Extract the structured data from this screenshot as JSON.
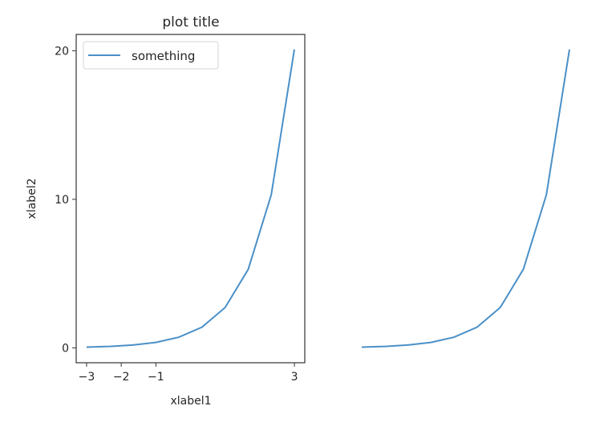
{
  "chart_data": [
    {
      "type": "line",
      "title": "plot title",
      "xlabel": "xlabel1",
      "ylabel": "xlabel2",
      "xlim": [
        -3.3,
        3.3
      ],
      "ylim": [
        -1.0,
        21.1
      ],
      "xticks": [
        -3,
        -2,
        -1,
        3
      ],
      "xtick_labels": [
        "−3",
        "−2",
        "−1",
        "3"
      ],
      "yticks": [
        0,
        10,
        20
      ],
      "ytick_labels": [
        "0",
        "10",
        "20"
      ],
      "grid": false,
      "legend": {
        "placement": "upper-left",
        "entries": [
          "something"
        ]
      },
      "series": [
        {
          "name": "something",
          "color": "#4a90c8",
          "x": [
            -3,
            -2.333,
            -1.667,
            -1,
            -0.333,
            0.333,
            1,
            1.667,
            2.333,
            3
          ],
          "y": [
            0.05,
            0.097,
            0.189,
            0.368,
            0.717,
            1.396,
            2.718,
            5.29,
            10.31,
            20.09
          ]
        }
      ]
    },
    {
      "type": "line",
      "axis_off": true,
      "xlim": [
        -3.3,
        3.3
      ],
      "ylim": [
        -1.0,
        21.1
      ],
      "series": [
        {
          "color": "#4a90c8",
          "x": [
            -3,
            -2.333,
            -1.667,
            -1,
            -0.333,
            0.333,
            1,
            1.667,
            2.333,
            3
          ],
          "y": [
            0.05,
            0.097,
            0.189,
            0.368,
            0.717,
            1.396,
            2.718,
            5.29,
            10.31,
            20.09
          ]
        }
      ]
    }
  ]
}
